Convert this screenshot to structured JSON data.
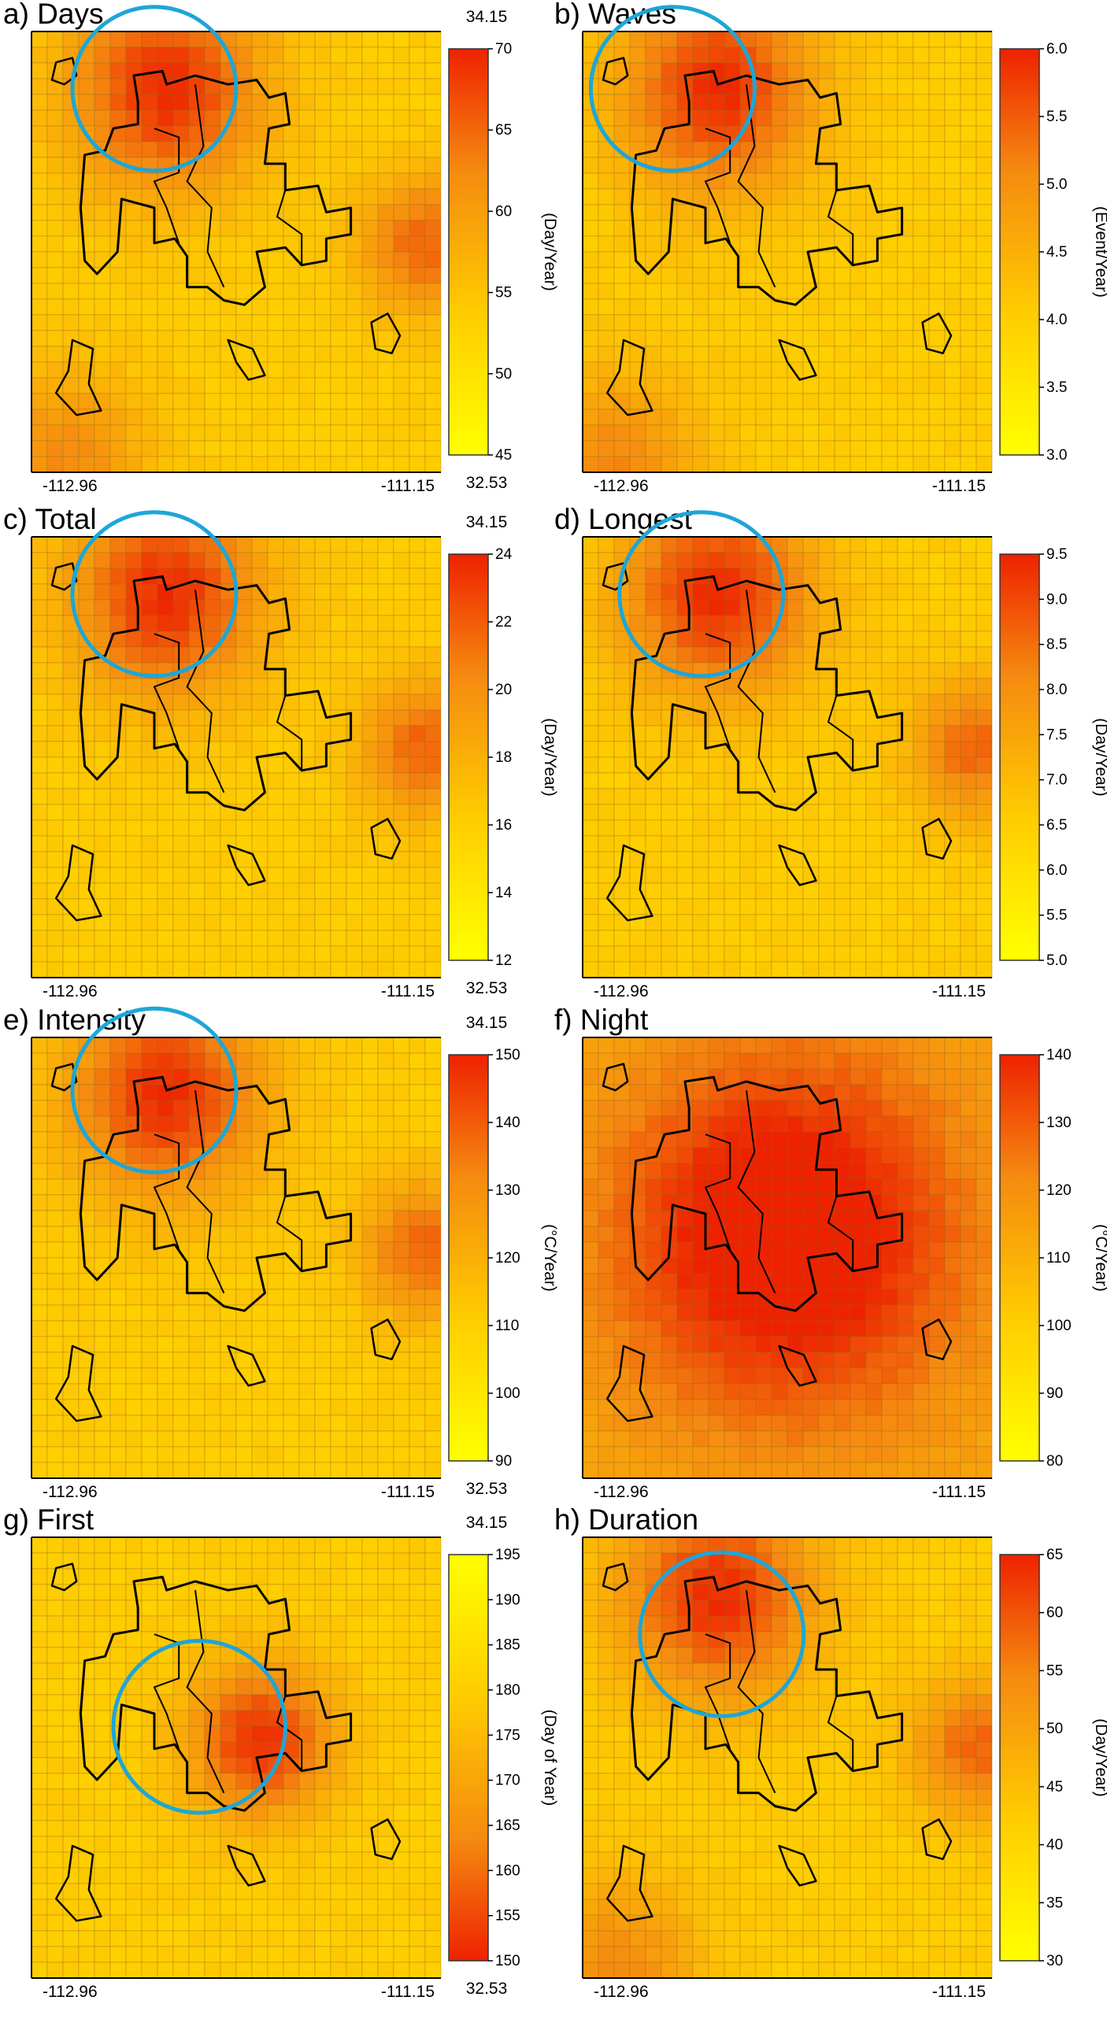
{
  "coordinates": {
    "lon_min": "-112.96",
    "lon_max": "-111.15",
    "lat_max": "34.15",
    "lat_min": "32.53"
  },
  "colors": {
    "low": "#ffff00",
    "high": "#ee2200",
    "grid_line": "#8a6a1a",
    "boundary": "#000000",
    "highlight_circle": "#1ea6d6"
  },
  "chart_data": [
    {
      "type": "heatmap",
      "id": "a",
      "title": "a) Days",
      "colorbar_label": "(Day/Year)",
      "colorbar_ticks": [
        "45",
        "50",
        "55",
        "60",
        "65",
        "70"
      ],
      "range": [
        45,
        70
      ],
      "reversed_colorscale": false,
      "highlight_circle": true,
      "hotspots": [
        "north-central",
        "east",
        "southwest-corner"
      ]
    },
    {
      "type": "heatmap",
      "id": "b",
      "title": "b) Waves",
      "colorbar_label": "(Event/Year)",
      "colorbar_ticks": [
        "3.0",
        "3.5",
        "4.0",
        "4.5",
        "5.0",
        "5.5",
        "6.0"
      ],
      "range": [
        3.0,
        6.0
      ],
      "reversed_colorscale": false,
      "highlight_circle": true,
      "hotspots": [
        "north-central",
        "southwest-corner"
      ]
    },
    {
      "type": "heatmap",
      "id": "c",
      "title": "c) Total",
      "colorbar_label": "(Day/Year)",
      "colorbar_ticks": [
        "12",
        "14",
        "16",
        "18",
        "20",
        "22",
        "24"
      ],
      "range": [
        12,
        24
      ],
      "reversed_colorscale": false,
      "highlight_circle": true,
      "hotspots": [
        "north-central",
        "east"
      ]
    },
    {
      "type": "heatmap",
      "id": "d",
      "title": "d) Longest",
      "colorbar_label": "(Day/Year)",
      "colorbar_ticks": [
        "5.0",
        "5.5",
        "6.0",
        "6.5",
        "7.0",
        "7.5",
        "8.0",
        "8.5",
        "9.0",
        "9.5"
      ],
      "range": [
        5.0,
        9.5
      ],
      "reversed_colorscale": false,
      "highlight_circle": true,
      "hotspots": [
        "north-central",
        "east"
      ]
    },
    {
      "type": "heatmap",
      "id": "e",
      "title": "e) Intensity",
      "colorbar_label": "(°C/Year)",
      "colorbar_ticks": [
        "90",
        "100",
        "110",
        "120",
        "130",
        "140",
        "150"
      ],
      "range": [
        90,
        150
      ],
      "reversed_colorscale": false,
      "highlight_circle": true,
      "hotspots": [
        "north-central",
        "east"
      ]
    },
    {
      "type": "heatmap",
      "id": "f",
      "title": "f) Night",
      "colorbar_label": "(°C/Year)",
      "colorbar_ticks": [
        "80",
        "90",
        "100",
        "110",
        "120",
        "130",
        "140"
      ],
      "range": [
        80,
        140
      ],
      "reversed_colorscale": false,
      "highlight_circle": false,
      "hotspots": [
        "central-wide"
      ]
    },
    {
      "type": "heatmap",
      "id": "g",
      "title": "g) First",
      "colorbar_label": "(Day of Year)",
      "colorbar_ticks": [
        "150",
        "155",
        "160",
        "165",
        "170",
        "175",
        "180",
        "185",
        "190",
        "195"
      ],
      "range": [
        150,
        195
      ],
      "reversed_colorscale": true,
      "highlight_circle": true,
      "hotspots": [
        "center-east"
      ]
    },
    {
      "type": "heatmap",
      "id": "h",
      "title": "h) Duration",
      "colorbar_label": "(Day/Year)",
      "colorbar_ticks": [
        "30",
        "35",
        "40",
        "45",
        "50",
        "55",
        "60",
        "65"
      ],
      "range": [
        30,
        65
      ],
      "reversed_colorscale": false,
      "highlight_circle": true,
      "hotspots": [
        "north-central",
        "east",
        "southwest-corner"
      ]
    }
  ]
}
